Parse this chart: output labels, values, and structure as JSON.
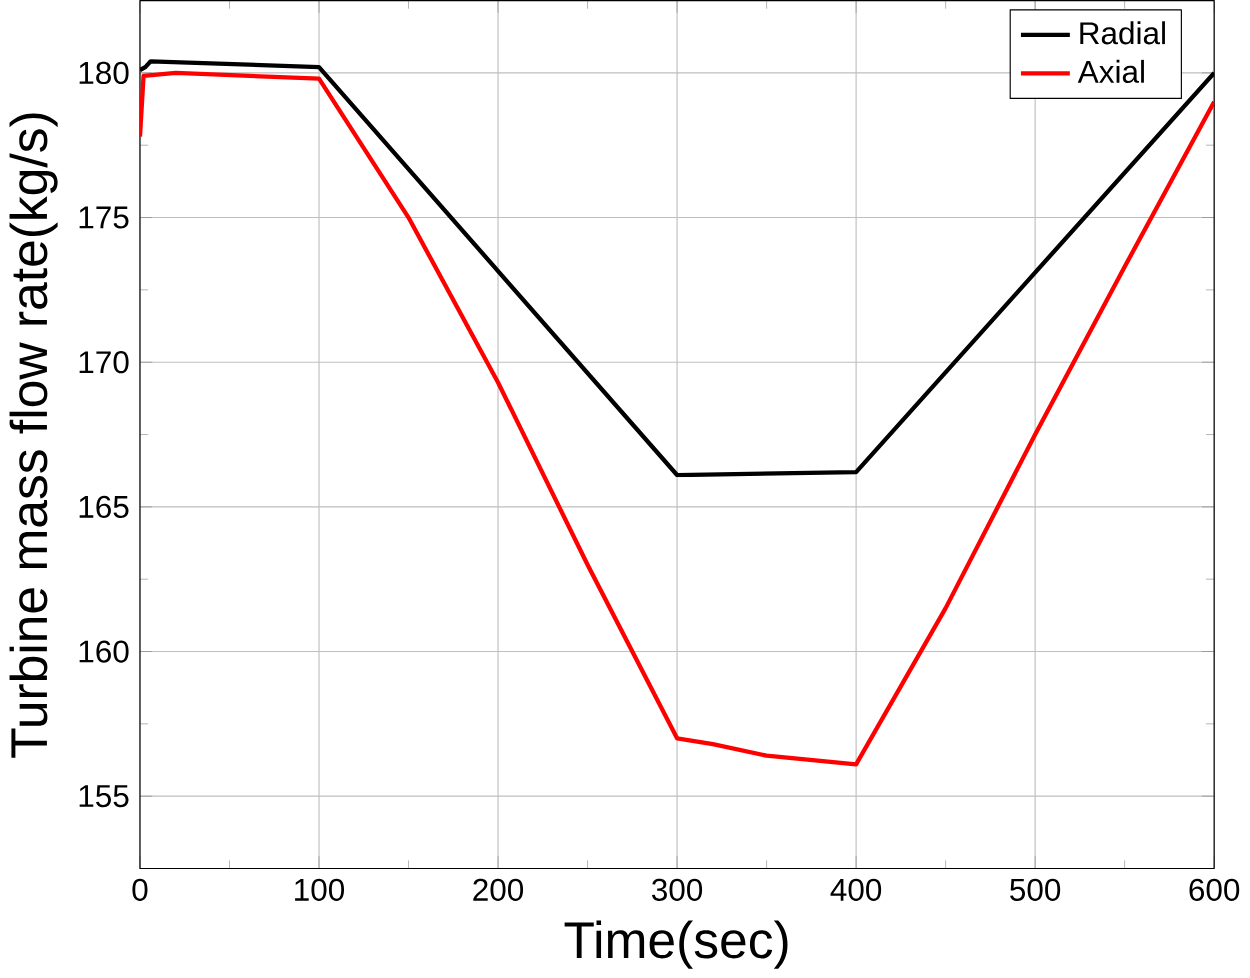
{
  "chart_data": {
    "type": "line",
    "xlabel": "Time(sec)",
    "ylabel": "Turbine mass flow rate(kg/s)",
    "xlim": [
      0,
      600
    ],
    "xticks": [
      0,
      100,
      200,
      300,
      400,
      500,
      600
    ],
    "ylim": [
      152.5,
      182.5
    ],
    "yticks": [
      155,
      160,
      165,
      170,
      175,
      180
    ],
    "grid": true,
    "legend": "top right",
    "line_style": "solid",
    "marker": "none",
    "series": [
      {
        "name": "Radial",
        "color": "#000000",
        "x": [
          0,
          3,
          6,
          100,
          300,
          400,
          600
        ],
        "values": [
          180.1,
          180.2,
          180.4,
          180.2,
          166.1,
          166.2,
          180.0
        ]
      },
      {
        "name": "Axial",
        "color": "#ff0000",
        "x": [
          0,
          2,
          20,
          100,
          150,
          200,
          250,
          300,
          320,
          350,
          400,
          450,
          500,
          550,
          600
        ],
        "values": [
          177.8,
          179.9,
          180.0,
          179.8,
          175.0,
          169.3,
          163.0,
          157.0,
          156.8,
          156.4,
          156.1,
          161.5,
          167.5,
          173.3,
          179.0
        ]
      }
    ]
  }
}
